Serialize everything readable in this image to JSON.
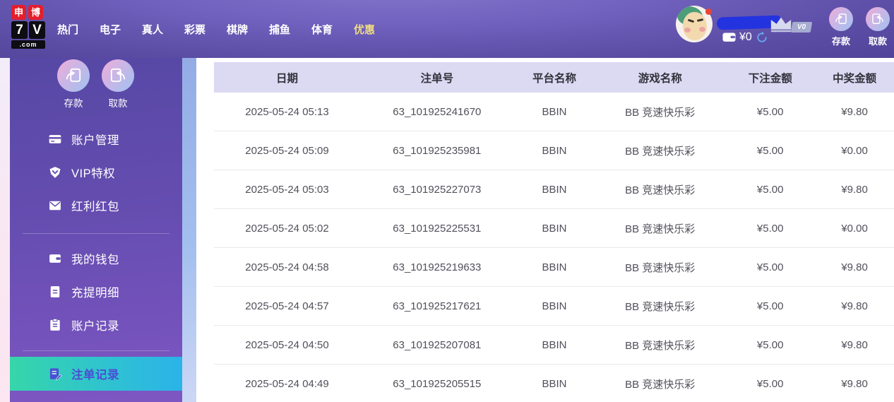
{
  "brand": {
    "badges": [
      "申",
      "博"
    ],
    "name_chars": [
      "7",
      "V"
    ],
    "tld": ".com"
  },
  "nav": {
    "items": [
      {
        "label": "热门"
      },
      {
        "label": "电子"
      },
      {
        "label": "真人"
      },
      {
        "label": "彩票"
      },
      {
        "label": "棋牌"
      },
      {
        "label": "捕鱼"
      },
      {
        "label": "体育"
      },
      {
        "label": "优惠",
        "highlight": true
      }
    ]
  },
  "user": {
    "balance": "¥0",
    "vip_level": "V0",
    "deposit_label": "存款",
    "withdraw_label": "取款"
  },
  "sidebar": {
    "quick_actions": [
      {
        "label": "存款"
      },
      {
        "label": "取款"
      }
    ],
    "groups": [
      {
        "items": [
          {
            "id": "account-management",
            "icon": "bank-card-icon",
            "label": "账户管理"
          },
          {
            "id": "vip-privileges",
            "icon": "vip-badge-icon",
            "label": "VIP特权"
          },
          {
            "id": "bonus-red-packet",
            "icon": "red-packet-icon",
            "label": "红利红包"
          }
        ]
      },
      {
        "items": [
          {
            "id": "my-wallet",
            "icon": "wallet-icon",
            "label": "我的钱包"
          },
          {
            "id": "deposit-withdraw-details",
            "icon": "statement-icon",
            "label": "充提明细"
          },
          {
            "id": "account-records",
            "icon": "clipboard-icon",
            "label": "账户记录"
          }
        ]
      },
      {
        "items": [
          {
            "id": "bet-records",
            "icon": "bet-record-icon",
            "label": "注单记录",
            "active": true
          }
        ]
      }
    ]
  },
  "table": {
    "headers": [
      "日期",
      "注单号",
      "平台名称",
      "游戏名称",
      "下注金额",
      "中奖金额"
    ],
    "rows": [
      [
        "2025-05-24 05:13",
        "63_101925241670",
        "BBIN",
        "BB 竞速快乐彩",
        "¥5.00",
        "¥9.80"
      ],
      [
        "2025-05-24 05:09",
        "63_101925235981",
        "BBIN",
        "BB 竞速快乐彩",
        "¥5.00",
        "¥0.00"
      ],
      [
        "2025-05-24 05:03",
        "63_101925227073",
        "BBIN",
        "BB 竞速快乐彩",
        "¥5.00",
        "¥9.80"
      ],
      [
        "2025-05-24 05:02",
        "63_101925225531",
        "BBIN",
        "BB 竞速快乐彩",
        "¥5.00",
        "¥0.00"
      ],
      [
        "2025-05-24 04:58",
        "63_101925219633",
        "BBIN",
        "BB 竞速快乐彩",
        "¥5.00",
        "¥9.80"
      ],
      [
        "2025-05-24 04:57",
        "63_101925217621",
        "BBIN",
        "BB 竞速快乐彩",
        "¥5.00",
        "¥9.80"
      ],
      [
        "2025-05-24 04:50",
        "63_101925207081",
        "BBIN",
        "BB 竞速快乐彩",
        "¥5.00",
        "¥9.80"
      ],
      [
        "2025-05-24 04:49",
        "63_101925205515",
        "BBIN",
        "BB 竞速快乐彩",
        "¥5.00",
        "¥9.80"
      ]
    ]
  },
  "colors": {
    "brand_red": "#e51e2b",
    "nav_gold": "#f0dc82",
    "active_item_text": "#4a4fd4",
    "active_from": "#36d6a9",
    "active_to": "#2ab3e9",
    "table_header_bg": "#dcd9f3"
  }
}
